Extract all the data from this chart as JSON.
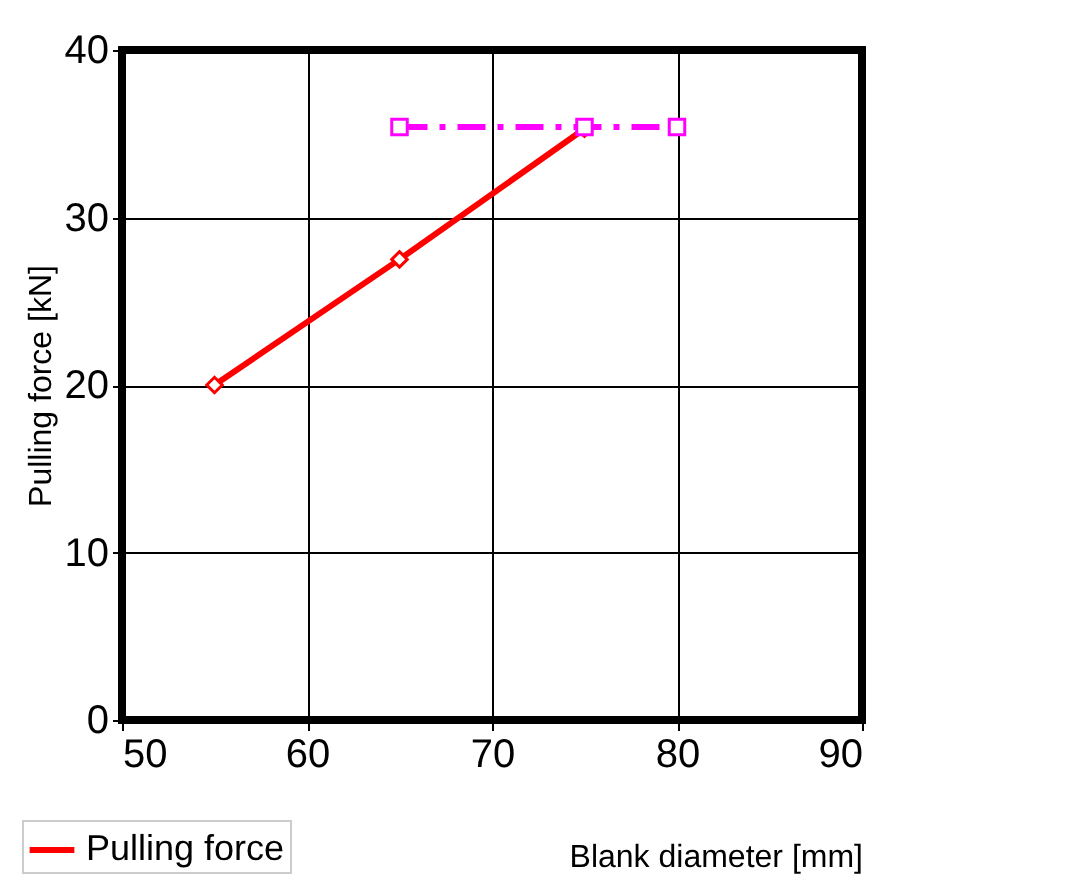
{
  "chart_data": {
    "type": "line",
    "xlabel": "Blank diameter [mm]",
    "ylabel": "Pulling force [kN]",
    "xlim": [
      50,
      90
    ],
    "xticks": [
      50,
      60,
      70,
      80,
      90
    ],
    "ylim": [
      0,
      40
    ],
    "yticks": [
      0,
      10,
      20,
      30,
      40
    ],
    "grid": true,
    "legend": "bottom left",
    "series": [
      {
        "name": "Pulling force",
        "color": "#ff0000",
        "x": [
          55,
          65,
          75
        ],
        "values": [
          20,
          27.5,
          35.3
        ],
        "marker": "diamond",
        "line_style": "solid"
      },
      {
        "color": "#ff00ff",
        "x": [
          65,
          75,
          80
        ],
        "values": [
          35.4,
          35.4,
          35.4
        ],
        "marker": "square",
        "line_style": "dashed"
      }
    ]
  }
}
